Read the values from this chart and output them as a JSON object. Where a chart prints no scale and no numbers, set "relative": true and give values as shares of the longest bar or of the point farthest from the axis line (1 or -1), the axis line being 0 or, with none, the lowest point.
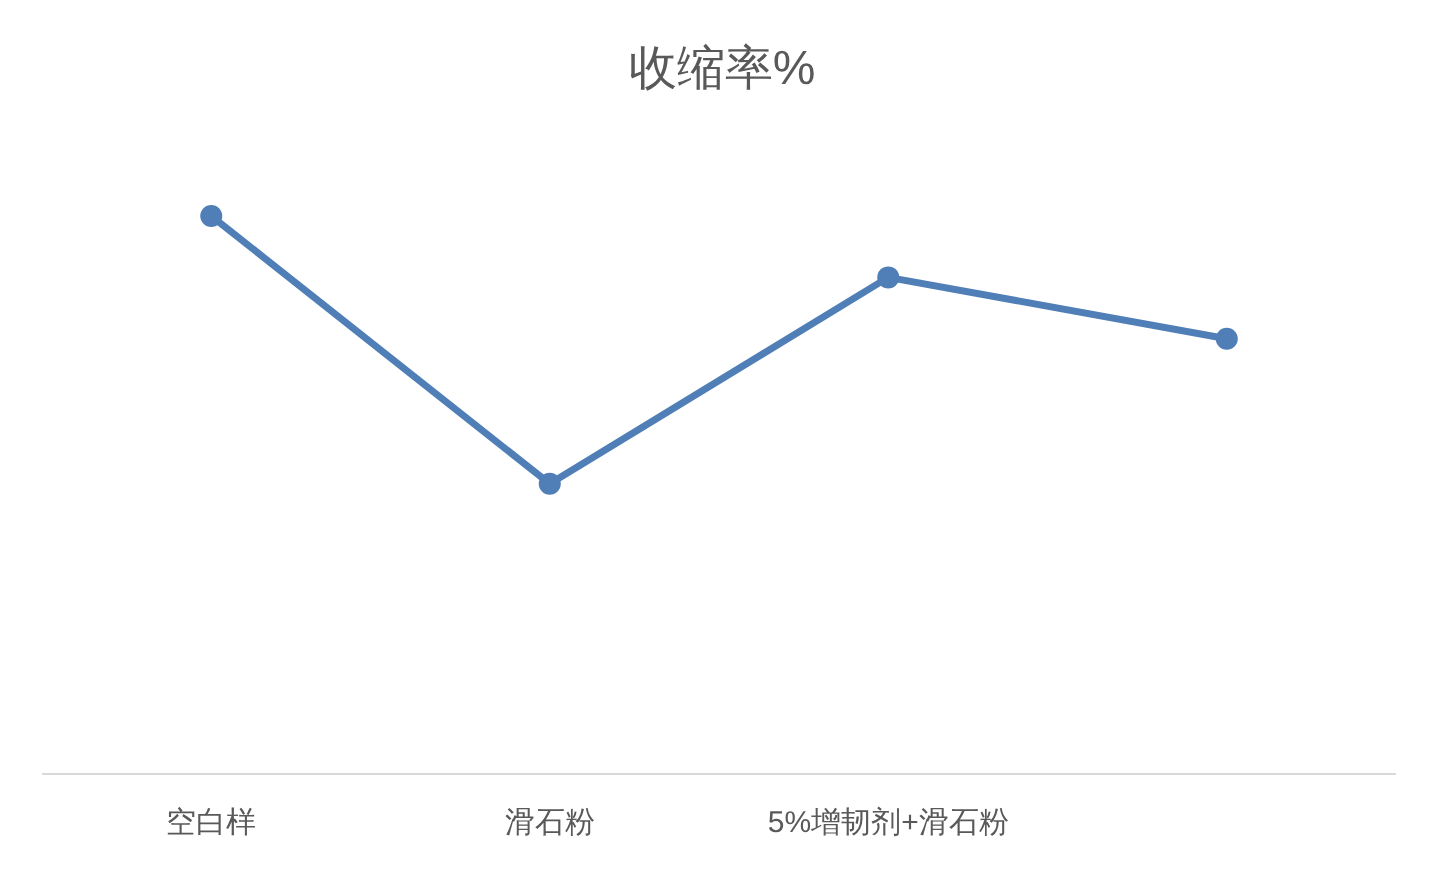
{
  "chart_data": {
    "type": "line",
    "title": "收缩率%",
    "categories": [
      "空白样",
      "滑石粉",
      "5%增韧剂+滑石粉",
      null
    ],
    "series": [
      {
        "color": "#4f7fb6",
        "values": [
          1,
          0.52,
          0.89,
          0.78
        ]
      }
    ],
    "relative": true,
    "marker": "circle",
    "grid": false
  }
}
